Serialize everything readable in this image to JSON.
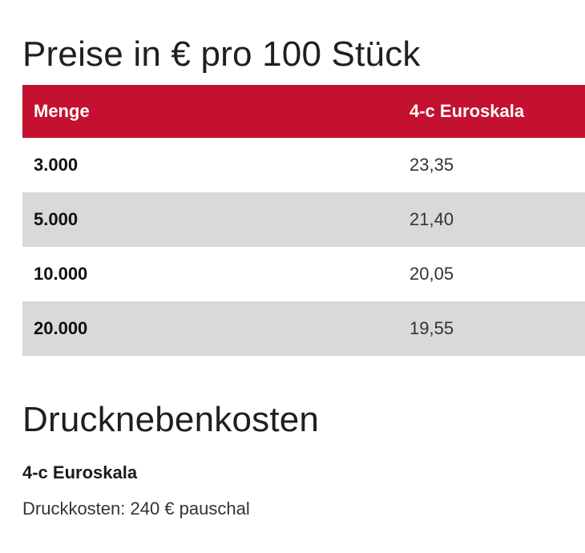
{
  "pricing": {
    "title": "Preise in € pro 100 Stück",
    "headers": {
      "quantity": "Menge",
      "color": "4-c Euroskala"
    },
    "rows": [
      {
        "quantity": "3.000",
        "price": "23,35"
      },
      {
        "quantity": "5.000",
        "price": "21,40"
      },
      {
        "quantity": "10.000",
        "price": "20,05"
      },
      {
        "quantity": "20.000",
        "price": "19,55"
      }
    ]
  },
  "extra_costs": {
    "title": "Drucknebenkosten",
    "subtitle": "4-c Euroskala",
    "line": "Druckkosten: 240 € pauschal"
  },
  "colors": {
    "header_bg": "#c4112f",
    "alt_row_bg": "#d9d9dc"
  }
}
